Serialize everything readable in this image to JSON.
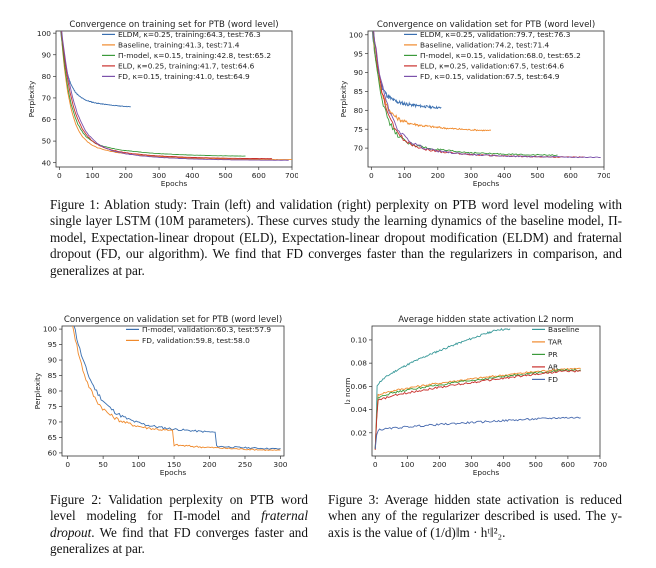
{
  "charts": [
    {
      "id": "train",
      "title": "Convergence on training set for PTB (word level)",
      "xlabel": "Epochs",
      "ylabel": "Perplexity",
      "xlim": [
        -10,
        700
      ],
      "ylim": [
        38,
        101
      ],
      "xticks": [
        0,
        100,
        200,
        300,
        400,
        500,
        600,
        700
      ],
      "yticks": [
        40,
        50,
        60,
        70,
        80,
        90,
        100
      ],
      "legend_pos": "top-right",
      "series": [
        {
          "name": "ELDM, κ=0.25, training:64.3, test:76.3",
          "color": "#3a6fb0",
          "end": 215,
          "final": 64.3,
          "early": 13,
          "drop": 0
        },
        {
          "name": "Baseline, training:41.3, test:71.4",
          "color": "#f08a2c",
          "end": 700,
          "final": 41.3,
          "early": 18,
          "drop": 0
        },
        {
          "name": "Π-model, κ=0.15, training:42.8, test:65.2",
          "color": "#3b9a3b",
          "end": 560,
          "final": 42.8,
          "early": 20,
          "drop": 0
        },
        {
          "name": "ELD, κ=0.25, training:41.7, test:64.6",
          "color": "#c9302c",
          "end": 640,
          "final": 41.7,
          "early": 25,
          "drop": 0
        },
        {
          "name": "FD, κ=0.15, training:41.0, test:64.9",
          "color": "#7b52ab",
          "end": 690,
          "final": 41.0,
          "early": 30,
          "drop": 0
        }
      ]
    },
    {
      "id": "valid",
      "title": "Convergence on validation set for PTB (word level)",
      "xlabel": "Epochs",
      "ylabel": "Perplexity",
      "xlim": [
        -10,
        700
      ],
      "ylim": [
        65,
        101
      ],
      "xticks": [
        0,
        100,
        200,
        300,
        400,
        500,
        600,
        700
      ],
      "yticks": [
        70,
        75,
        80,
        85,
        90,
        95,
        100
      ],
      "legend_pos": "top-right",
      "series": [
        {
          "name": "ELDM, κ=0.25, validation:79.7, test:76.3",
          "color": "#3a6fb0",
          "end": 210,
          "final": 79.7,
          "early": 10,
          "drop": 0
        },
        {
          "name": "Baseline, validation:74.2, test:71.4",
          "color": "#f08a2c",
          "end": 360,
          "final": 74.2,
          "early": 15,
          "drop": 0
        },
        {
          "name": "Π-model, κ=0.15, validation:68.0, test:65.2",
          "color": "#3b9a3b",
          "end": 560,
          "final": 68.0,
          "early": 20,
          "drop": 0
        },
        {
          "name": "ELD, κ=0.25, validation:67.5, test:64.6",
          "color": "#c9302c",
          "end": 640,
          "final": 67.5,
          "early": 25,
          "drop": 0
        },
        {
          "name": "FD, κ=0.15, validation:67.5, test:64.9",
          "color": "#7b52ab",
          "end": 690,
          "final": 67.5,
          "early": 30,
          "drop": 0
        }
      ]
    },
    {
      "id": "valid2",
      "title": "Convergence on validation set for PTB (word level)",
      "xlabel": "Epochs",
      "ylabel": "Perplexity",
      "xlim": [
        -8,
        305
      ],
      "ylim": [
        59,
        101
      ],
      "xticks": [
        0,
        50,
        100,
        150,
        200,
        250,
        300
      ],
      "yticks": [
        60,
        65,
        70,
        75,
        80,
        85,
        90,
        95,
        100
      ],
      "legend_pos": "top-right",
      "series": [
        {
          "name": "Π-model, validation:60.3, test:57.9",
          "color": "#3a6fb0",
          "end": 300,
          "final": 60.3,
          "early": 20,
          "drop": 210
        },
        {
          "name": "FD, validation:59.8, test:58.0",
          "color": "#f08a2c",
          "end": 300,
          "final": 59.8,
          "early": 15,
          "drop": 150
        }
      ]
    },
    {
      "id": "act",
      "title": "Average hidden state activation L2 norm",
      "xlabel": "Epochs",
      "ylabel": "l₂ norm",
      "xlim": [
        -10,
        700
      ],
      "ylim": [
        0.0,
        0.112
      ],
      "xticks": [
        0,
        100,
        200,
        300,
        400,
        500,
        600,
        700
      ],
      "yticks": [
        0.02,
        0.04,
        0.06,
        0.08,
        0.1
      ],
      "legend_pos": "top-right",
      "series": [
        {
          "name": "Baseline",
          "color": "#3a9a9a",
          "end": 420,
          "final": 0.109,
          "start": 0.06
        },
        {
          "name": "TAR",
          "color": "#f08a2c",
          "end": 640,
          "final": 0.075,
          "start": 0.052
        },
        {
          "name": "PR",
          "color": "#3b9a3b",
          "end": 640,
          "final": 0.074,
          "start": 0.05
        },
        {
          "name": "AR",
          "color": "#c9302c",
          "end": 640,
          "final": 0.073,
          "start": 0.047
        },
        {
          "name": "FD",
          "color": "#4a6cb0",
          "end": 640,
          "final": 0.033,
          "start": 0.022
        }
      ]
    }
  ],
  "captions": {
    "fig1": "Figure 1: Ablation study: Train (left) and validation (right) perplexity on PTB word level modeling with single layer LSTM (10M parameters). These curves study the learning dynamics of the baseline model, Π-model, Expectation-linear dropout (ELD), Expectation-linear dropout modification (ELDM) and fraternal dropout (FD, our algorithm). We find that FD converges faster than the regularizers in comparison, and generalizes at par.",
    "fig2_a": "Figure 2: Validation perplexity on PTB word level modeling for Π-model and ",
    "fig2_em": "fraternal dropout",
    "fig2_b": ". We find that FD converges faster and generalizes at par.",
    "fig3_a": "Figure 3: Average hidden state activation is reduced when any of the regularizer described is used. The y-axis is the value of ",
    "fig3_math": "(1/d)‖m · hᵗ‖²₂",
    "fig3_b": "."
  }
}
